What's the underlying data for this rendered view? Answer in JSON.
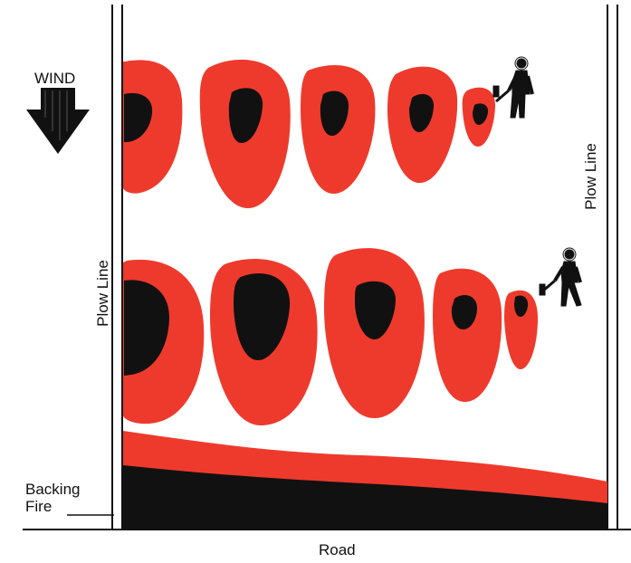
{
  "labels": {
    "wind": "WIND",
    "plow_line_left": "Plow Line",
    "plow_line_right": "Plow Line",
    "backing_fire": "Backing\nFire",
    "road": "Road"
  },
  "icons": {
    "wind_arrow": "down-arrow-icon",
    "firefighter": "firefighter-with-drip-torch-icon"
  },
  "colors": {
    "flame": "#ee3a2c",
    "burned": "#111111",
    "line": "#111111",
    "background": "#ffffff"
  }
}
